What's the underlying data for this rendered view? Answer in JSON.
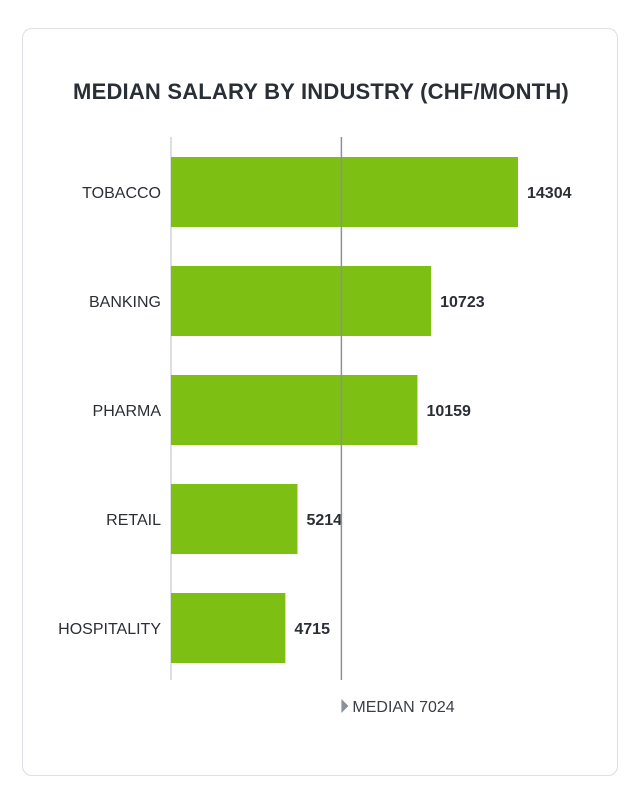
{
  "chart_data": {
    "type": "bar",
    "orientation": "horizontal",
    "title": "MEDIAN SALARY BY INDUSTRY (CHF/MONTH)",
    "categories": [
      "TOBACCO",
      "BANKING",
      "PHARMA",
      "RETAIL",
      "HOSPITALITY"
    ],
    "values": [
      14304,
      10723,
      10159,
      5214,
      4715
    ],
    "xlim": [
      0,
      16000
    ],
    "reference_line": {
      "value": 7024,
      "label": "MEDIAN 7024"
    },
    "bar_color": "#7dc013",
    "grid": false,
    "legend": "none"
  }
}
